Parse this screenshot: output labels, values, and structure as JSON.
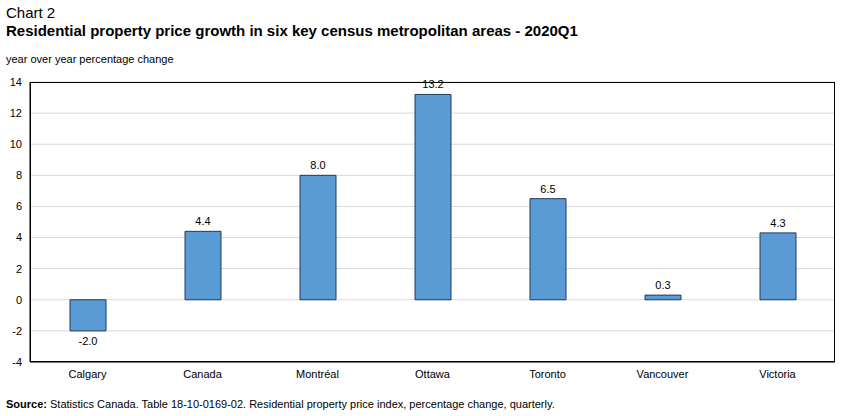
{
  "chart_data": {
    "type": "bar",
    "chart_number": "Chart 2",
    "title": "Residential property price growth in six key census metropolitan areas - 2020Q1",
    "y_label": "year over year percentage change",
    "categories": [
      "Calgary",
      "Canada",
      "Montréal",
      "Ottawa",
      "Toronto",
      "Vancouver",
      "Victoria"
    ],
    "values": [
      -2.0,
      4.4,
      8.0,
      13.2,
      6.5,
      0.3,
      4.3
    ],
    "value_labels": [
      "-2.0",
      "4.4",
      "8.0",
      "13.2",
      "6.5",
      "0.3",
      "4.3"
    ],
    "data_labels": true,
    "color": "#5b9bd5",
    "ylim": [
      -4,
      14
    ],
    "yticks": [
      -4,
      -2,
      0,
      2,
      4,
      6,
      8,
      10,
      12,
      14
    ],
    "grid": true,
    "source_label": "Source:",
    "source": "Statistics Canada. Table 18-10-0169-02. Residential property price index, percentage change, quarterly."
  }
}
